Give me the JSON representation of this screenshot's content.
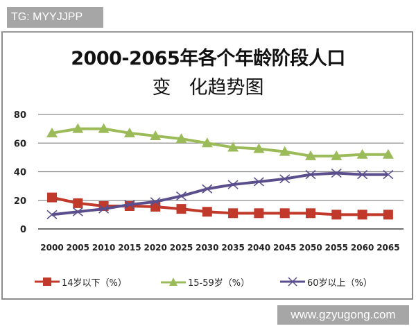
{
  "watermark_top": "TG: MYYJJPP",
  "watermark_bottom": "www.gzyugong.com",
  "title_line1": "2000-2065年各个年龄阶段人口",
  "title_line2_a": "变",
  "title_line2_b": "化趋势图",
  "legend": [
    {
      "label": "14岁以下（%）",
      "color": "#c0392b",
      "marker": "square"
    },
    {
      "label": "15-59岁（%）",
      "color": "#9bbb59",
      "marker": "triangle"
    },
    {
      "label": "60岁以上（%）",
      "color": "#5b4e8c",
      "marker": "x"
    }
  ],
  "colors": {
    "series1": "#c0392b",
    "series2": "#9bbb59",
    "series3": "#5b4e8c",
    "grid": "#808080"
  },
  "chart_data": {
    "type": "line",
    "title": "2000-2065年各个年龄阶段人口变化趋势图",
    "xlabel": "",
    "ylabel": "",
    "categories": [
      "2000",
      "2005",
      "2010",
      "2015",
      "2020",
      "2025",
      "2030",
      "2035",
      "2040",
      "2045",
      "2050",
      "2055",
      "2060",
      "2065"
    ],
    "yticks": [
      0,
      20,
      40,
      60,
      80
    ],
    "ylim": [
      0,
      80
    ],
    "grid": true,
    "legend_position": "bottom",
    "series": [
      {
        "name": "14岁以下（%）",
        "marker": "square",
        "values": [
          22,
          18,
          16,
          16,
          15.5,
          14,
          12,
          11,
          11,
          11,
          11,
          10,
          10,
          10
        ]
      },
      {
        "name": "15-59岁（%）",
        "marker": "triangle",
        "values": [
          67,
          70,
          70,
          67,
          65,
          63,
          60,
          57,
          56,
          54,
          51,
          51,
          52,
          52
        ]
      },
      {
        "name": "60岁以上（%）",
        "marker": "x",
        "values": [
          10,
          12,
          14,
          17,
          19,
          23,
          28,
          31,
          33,
          35,
          38,
          39,
          38,
          38
        ]
      }
    ]
  }
}
